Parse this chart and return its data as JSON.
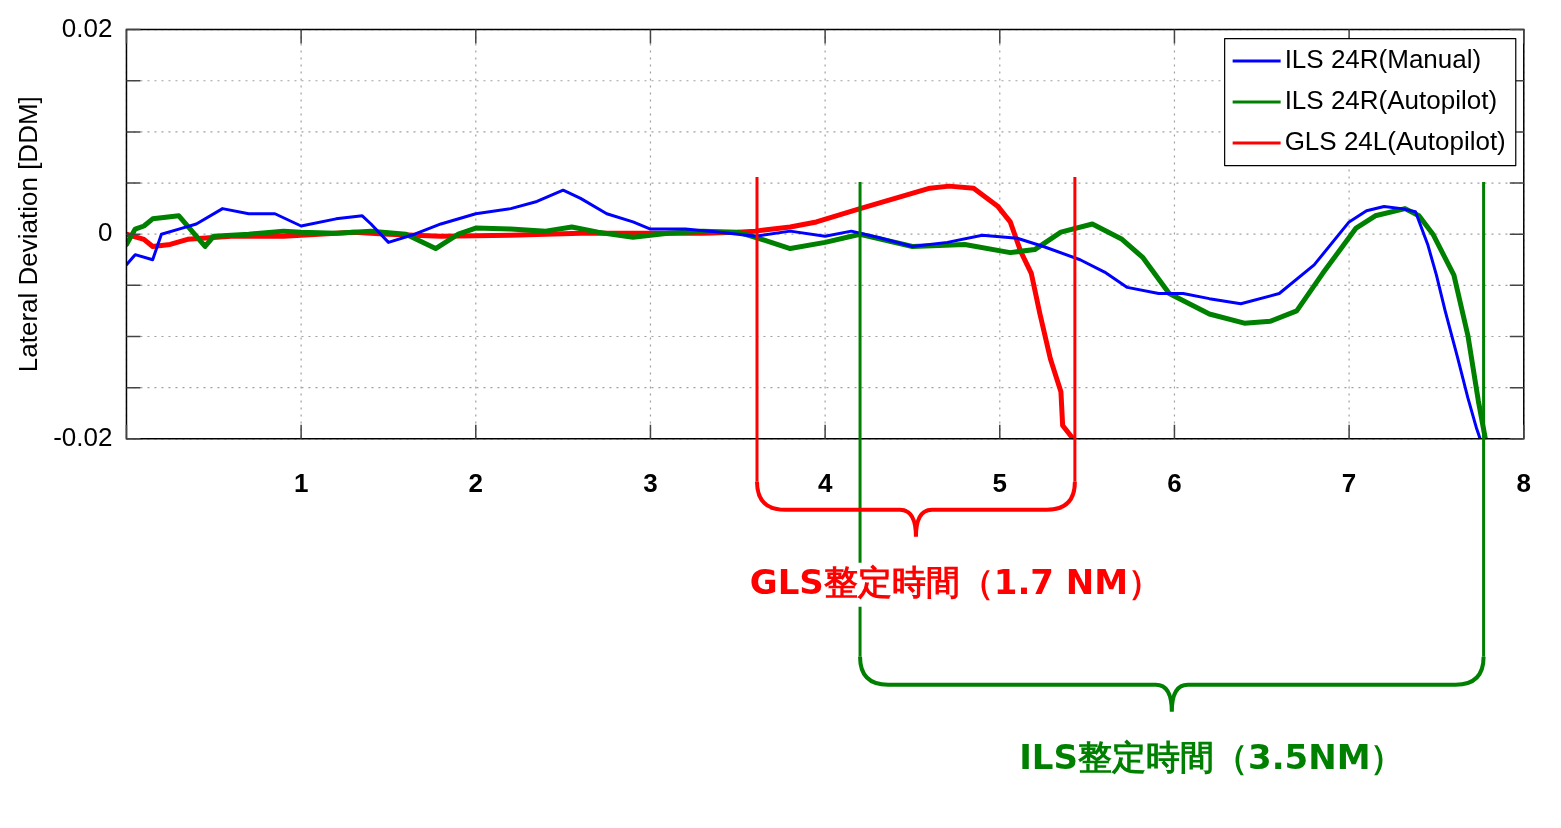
{
  "chart_data": {
    "type": "line",
    "ylabel": "Lateral Deviation [DDM]",
    "xlim": [
      0,
      8
    ],
    "xticks": [
      {
        "value": 0,
        "label": null
      },
      1,
      2,
      3,
      4,
      5,
      6,
      7,
      8
    ],
    "ylim": [
      -0.02,
      0.02
    ],
    "yticks": [
      {
        "value": -0.02,
        "label": "-0.02"
      },
      {
        "value": -0.015,
        "label": null
      },
      {
        "value": -0.01,
        "label": null
      },
      {
        "value": -0.005,
        "label": null
      },
      0,
      {
        "value": 0.005,
        "label": null
      },
      {
        "value": 0.01,
        "label": null
      },
      {
        "value": 0.015,
        "label": null
      },
      0.02
    ],
    "grid": true,
    "legend": "top right",
    "line_style": "solid",
    "series": [
      {
        "name": "ILS 24R(Manual)",
        "color": "#0000ff",
        "x": [
          0,
          0.05,
          0.15,
          0.2,
          0.3,
          0.4,
          0.55,
          0.7,
          0.85,
          1.0,
          1.2,
          1.35,
          1.4,
          1.5,
          1.65,
          1.8,
          2.0,
          2.2,
          2.35,
          2.5,
          2.6,
          2.75,
          2.9,
          3.0,
          3.2,
          3.4,
          3.6,
          3.8,
          4.0,
          4.15,
          4.3,
          4.5,
          4.7,
          4.9,
          5.1,
          5.25,
          5.46,
          5.6,
          5.73,
          5.91,
          6.05,
          6.2,
          6.38,
          6.6,
          6.8,
          7.0,
          7.1,
          7.2,
          7.3,
          7.38,
          7.45,
          7.5,
          7.55,
          7.62,
          7.68,
          7.73,
          7.75
        ],
        "values": [
          -0.003,
          -0.002,
          -0.0025,
          0,
          0.0005,
          0.001,
          0.0025,
          0.002,
          0.002,
          0.0008,
          0.0015,
          0.0018,
          0.001,
          -0.0008,
          0,
          0.001,
          0.002,
          0.0025,
          0.0032,
          0.0043,
          0.0035,
          0.002,
          0.0012,
          0.0005,
          0.0005,
          0.0002,
          -0.0002,
          0.0003,
          -0.0002,
          0.0003,
          -0.0003,
          -0.0012,
          -0.0008,
          -0.0001,
          -0.0004,
          -0.0012,
          -0.0025,
          -0.0037,
          -0.0052,
          -0.0058,
          -0.0058,
          -0.0063,
          -0.0068,
          -0.0058,
          -0.003,
          0.0012,
          0.0023,
          0.0027,
          0.0025,
          0.0022,
          -0.001,
          -0.004,
          -0.0075,
          -0.012,
          -0.016,
          -0.019,
          -0.02
        ]
      },
      {
        "name": "ILS 24R(Autopilot)",
        "color": "#008000",
        "x": [
          0,
          0.05,
          0.1,
          0.15,
          0.3,
          0.45,
          0.5,
          0.7,
          0.9,
          1.0,
          1.2,
          1.4,
          1.6,
          1.77,
          1.9,
          2.0,
          2.2,
          2.4,
          2.55,
          2.7,
          2.9,
          3.1,
          3.3,
          3.5,
          3.6,
          3.8,
          4.0,
          4.2,
          4.5,
          4.8,
          5.06,
          5.2,
          5.35,
          5.53,
          5.7,
          5.82,
          5.97,
          6.2,
          6.4,
          6.55,
          6.7,
          6.85,
          7.04,
          7.15,
          7.32,
          7.4,
          7.48,
          7.6,
          7.68,
          7.74,
          7.78
        ],
        "values": [
          -0.001,
          0.0005,
          0.0008,
          0.0015,
          0.0018,
          -0.0012,
          -0.0002,
          0,
          0.0003,
          0.0002,
          0.0001,
          0.0003,
          0,
          -0.0014,
          0,
          0.0006,
          0.0005,
          0.0003,
          0.0007,
          0.0002,
          -0.0003,
          0.0001,
          0.0003,
          0.0002,
          -0.0003,
          -0.0014,
          -0.0008,
          0,
          -0.0012,
          -0.001,
          -0.0018,
          -0.0015,
          0.0002,
          0.001,
          -0.0005,
          -0.0023,
          -0.0058,
          -0.0078,
          -0.0087,
          -0.0085,
          -0.0075,
          -0.0038,
          0.0006,
          0.0018,
          0.0025,
          0.0018,
          0,
          -0.004,
          -0.0099,
          -0.0163,
          -0.02
        ]
      },
      {
        "name": "GLS 24L(Autopilot)",
        "color": "#ff0000",
        "x": [
          0,
          0.1,
          0.15,
          0.25,
          0.35,
          0.6,
          0.9,
          1.1,
          1.3,
          1.5,
          1.8,
          2.2,
          2.6,
          3.0,
          3.3,
          3.5,
          3.6,
          3.8,
          3.95,
          4.2,
          4.4,
          4.6,
          4.71,
          4.85,
          4.99,
          5.06,
          5.12,
          5.18,
          5.23,
          5.29,
          5.35,
          5.36,
          5.42
        ],
        "values": [
          0,
          -0.0005,
          -0.0012,
          -0.001,
          -0.0005,
          -0.0002,
          -0.0002,
          0,
          0.0002,
          0,
          -0.0002,
          -0.0001,
          0.0001,
          0.0001,
          0.0001,
          0.0002,
          0.0003,
          0.0007,
          0.0012,
          0.0025,
          0.0035,
          0.0045,
          0.0047,
          0.0045,
          0.0027,
          0.0012,
          -0.0017,
          -0.0038,
          -0.0078,
          -0.0122,
          -0.0154,
          -0.0187,
          -0.02
        ]
      }
    ],
    "ref_lines": [
      {
        "axis": "x",
        "value": 3.61,
        "color": "#ff0000"
      },
      {
        "axis": "x",
        "value": 5.43,
        "color": "#ff0000"
      },
      {
        "axis": "x",
        "value": 4.2,
        "color": "#008000"
      },
      {
        "axis": "x",
        "value": 7.77,
        "color": "#008000"
      }
    ],
    "annotations": [
      "GLS整定時間（1.7 NM）",
      "ILS整定時間（3.5NM）"
    ]
  }
}
